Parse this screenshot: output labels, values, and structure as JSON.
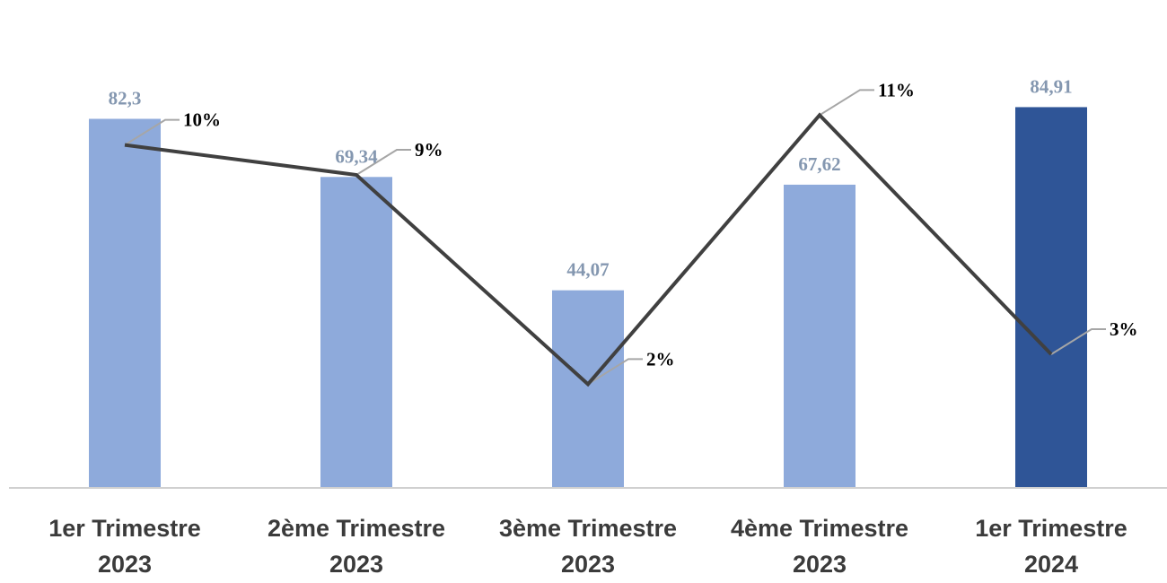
{
  "chart_data": {
    "type": "bar",
    "categories": [
      [
        "1er Trimestre",
        "2023"
      ],
      [
        "2ème Trimestre",
        "2023"
      ],
      [
        "3ème Trimestre",
        "2023"
      ],
      [
        "4ème Trimestre",
        "2023"
      ],
      [
        "1er Trimestre",
        "2024"
      ]
    ],
    "series": [
      {
        "type": "bar",
        "values": [
          82.3,
          69.34,
          44.07,
          67.62,
          84.91
        ],
        "labels": [
          "82,3",
          "69,34",
          "44,07",
          "67,62",
          "84,91"
        ],
        "colors": [
          "#8eaadb",
          "#8eaadb",
          "#8eaadb",
          "#8eaadb",
          "#2f5597"
        ],
        "label_color": "#8497b0"
      },
      {
        "type": "line",
        "values": [
          10,
          9,
          2,
          11,
          3
        ],
        "labels": [
          "10%",
          "9%",
          "2%",
          "11%",
          "3%"
        ],
        "color": "#404040",
        "label_color": "#000000"
      }
    ],
    "title": "",
    "xlabel": "",
    "ylabel": "",
    "legend": "none",
    "grid": false
  }
}
